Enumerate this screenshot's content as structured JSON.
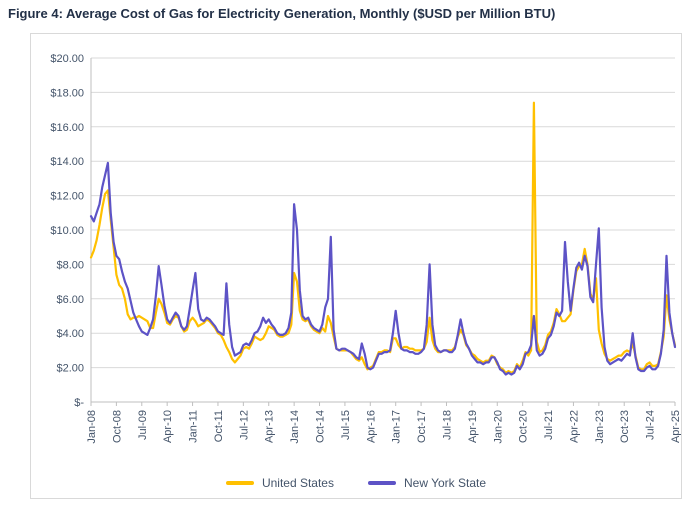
{
  "colors": {
    "title_text": "#223047",
    "axis_text": "#44546A",
    "gridline": "#d9d9d9",
    "axis_line": "#bfbfbf",
    "frame_border": "#d9d9d9",
    "us_line": "#FFC000",
    "ny_line": "#5D53C6"
  },
  "chart_data": {
    "type": "line",
    "title": "Figure 4: Average Cost of Gas for Electricity Generation, Monthly ($USD per Million BTU)",
    "xlabel": "",
    "ylabel": "",
    "ylim": [
      0,
      20
    ],
    "grid": "horizontal",
    "legend_position": "bottom",
    "y_ticks": [
      {
        "value": 0,
        "label": "$-"
      },
      {
        "value": 2,
        "label": "$2.00"
      },
      {
        "value": 4,
        "label": "$4.00"
      },
      {
        "value": 6,
        "label": "$6.00"
      },
      {
        "value": 8,
        "label": "$8.00"
      },
      {
        "value": 10,
        "label": "$10.00"
      },
      {
        "value": 12,
        "label": "$12.00"
      },
      {
        "value": 14,
        "label": "$14.00"
      },
      {
        "value": 16,
        "label": "$16.00"
      },
      {
        "value": 18,
        "label": "$18.00"
      },
      {
        "value": 20,
        "label": "$20.00"
      }
    ],
    "x_tick_every": 9,
    "x_tick_labels": [
      "Jan-08",
      "Oct-08",
      "Jul-09",
      "Apr-10",
      "Jan-11",
      "Oct-11",
      "Jul-12",
      "Apr-13",
      "Jan-14",
      "Oct-14",
      "Jul-15",
      "Apr-16",
      "Jan-17",
      "Oct-17",
      "Jul-18",
      "Apr-19",
      "Jan-20",
      "Oct-20",
      "Jul-21",
      "Apr-22",
      "Jan-23",
      "Oct-23",
      "Jul-24",
      "Apr-25"
    ],
    "x_range_note": "monthly points Jan-08 through Apr-25",
    "series": [
      {
        "name": "United States",
        "color": "#FFC000",
        "values": [
          8.4,
          8.8,
          9.4,
          10.3,
          11.3,
          12.1,
          12.3,
          10.6,
          9.0,
          7.4,
          6.8,
          6.6,
          6.0,
          5.1,
          4.8,
          4.9,
          4.9,
          5.0,
          4.9,
          4.8,
          4.7,
          4.3,
          4.3,
          5.2,
          6.0,
          5.7,
          5.2,
          4.6,
          4.5,
          4.8,
          5.0,
          4.9,
          4.4,
          4.1,
          4.2,
          4.7,
          4.9,
          4.7,
          4.4,
          4.5,
          4.6,
          4.8,
          4.7,
          4.5,
          4.3,
          4.0,
          3.9,
          3.6,
          3.2,
          2.9,
          2.5,
          2.3,
          2.5,
          2.7,
          3.1,
          3.2,
          3.1,
          3.4,
          3.8,
          3.7,
          3.6,
          3.7,
          4.0,
          4.4,
          4.3,
          4.2,
          3.9,
          3.8,
          3.8,
          3.9,
          4.0,
          4.5,
          7.5,
          7.0,
          5.3,
          4.8,
          4.7,
          4.8,
          4.4,
          4.2,
          4.1,
          4.0,
          4.3,
          4.1,
          5.0,
          4.6,
          3.8,
          3.1,
          3.0,
          3.0,
          3.0,
          3.0,
          2.9,
          2.7,
          2.5,
          2.4,
          2.6,
          2.2,
          1.9,
          2.0,
          2.1,
          2.5,
          2.9,
          2.9,
          3.0,
          3.0,
          2.9,
          3.7,
          3.7,
          3.3,
          3.1,
          3.2,
          3.2,
          3.1,
          3.1,
          3.0,
          3.0,
          3.0,
          3.1,
          3.5,
          4.9,
          3.6,
          3.1,
          2.9,
          2.9,
          3.0,
          3.0,
          3.0,
          3.0,
          3.2,
          3.8,
          4.2,
          3.9,
          3.3,
          3.1,
          2.8,
          2.7,
          2.5,
          2.4,
          2.3,
          2.4,
          2.4,
          2.7,
          2.6,
          2.2,
          2.0,
          1.9,
          1.7,
          1.8,
          1.7,
          1.8,
          2.2,
          2.0,
          2.4,
          2.9,
          2.7,
          3.0,
          17.4,
          3.5,
          2.9,
          3.0,
          3.3,
          3.9,
          4.1,
          4.6,
          5.4,
          5.1,
          4.7,
          4.7,
          4.9,
          5.1,
          6.5,
          7.6,
          7.9,
          8.0,
          8.9,
          8.0,
          6.3,
          5.9,
          7.2,
          4.2,
          3.4,
          2.8,
          2.5,
          2.4,
          2.5,
          2.6,
          2.7,
          2.7,
          2.9,
          3.0,
          2.9,
          3.4,
          2.7,
          2.0,
          1.9,
          1.9,
          2.2,
          2.3,
          2.1,
          2.1,
          2.2,
          2.9,
          3.8,
          6.2,
          4.8,
          4.0,
          3.3
        ]
      },
      {
        "name": "New York State",
        "color": "#5D53C6",
        "values": [
          10.8,
          10.5,
          11.0,
          11.5,
          12.5,
          13.2,
          13.9,
          11.0,
          9.3,
          8.5,
          8.3,
          7.6,
          7.0,
          6.6,
          5.9,
          5.2,
          4.8,
          4.4,
          4.1,
          4.0,
          3.9,
          4.3,
          4.8,
          6.2,
          7.9,
          6.8,
          5.6,
          4.8,
          4.6,
          4.9,
          5.2,
          5.0,
          4.4,
          4.2,
          4.4,
          5.4,
          6.5,
          7.5,
          5.4,
          4.8,
          4.7,
          4.9,
          4.8,
          4.6,
          4.4,
          4.1,
          4.0,
          3.9,
          6.9,
          4.5,
          3.2,
          2.7,
          2.8,
          2.9,
          3.3,
          3.4,
          3.3,
          3.6,
          4.0,
          4.1,
          4.4,
          4.9,
          4.6,
          4.8,
          4.5,
          4.3,
          4.0,
          3.9,
          3.9,
          4.0,
          4.3,
          5.2,
          11.5,
          10.0,
          6.5,
          5.0,
          4.8,
          4.9,
          4.5,
          4.3,
          4.2,
          4.1,
          4.5,
          5.5,
          6.0,
          9.6,
          4.2,
          3.1,
          3.0,
          3.1,
          3.1,
          3.0,
          2.9,
          2.8,
          2.6,
          2.5,
          3.4,
          2.8,
          2.0,
          1.9,
          2.0,
          2.4,
          2.8,
          2.8,
          2.9,
          2.9,
          3.0,
          4.0,
          5.3,
          4.0,
          3.1,
          3.0,
          3.0,
          2.9,
          2.9,
          2.8,
          2.8,
          2.9,
          3.1,
          4.5,
          8.0,
          4.5,
          3.3,
          3.0,
          2.9,
          3.0,
          3.0,
          2.9,
          2.9,
          3.1,
          3.9,
          4.8,
          4.0,
          3.4,
          3.1,
          2.7,
          2.5,
          2.3,
          2.3,
          2.2,
          2.3,
          2.3,
          2.6,
          2.6,
          2.3,
          1.9,
          1.8,
          1.6,
          1.7,
          1.6,
          1.7,
          2.1,
          1.9,
          2.2,
          2.8,
          2.9,
          3.3,
          5.0,
          3.0,
          2.7,
          2.8,
          3.1,
          3.7,
          3.9,
          4.4,
          5.2,
          5.0,
          5.3,
          9.3,
          7.0,
          5.3,
          6.6,
          7.8,
          8.1,
          7.7,
          8.5,
          7.9,
          6.1,
          5.8,
          8.0,
          10.1,
          5.5,
          3.2,
          2.4,
          2.2,
          2.3,
          2.4,
          2.5,
          2.4,
          2.6,
          2.8,
          2.7,
          4.0,
          2.6,
          1.9,
          1.8,
          1.8,
          2.0,
          2.1,
          1.9,
          1.9,
          2.1,
          2.8,
          4.2,
          8.5,
          5.2,
          4.0,
          3.2
        ]
      }
    ]
  }
}
